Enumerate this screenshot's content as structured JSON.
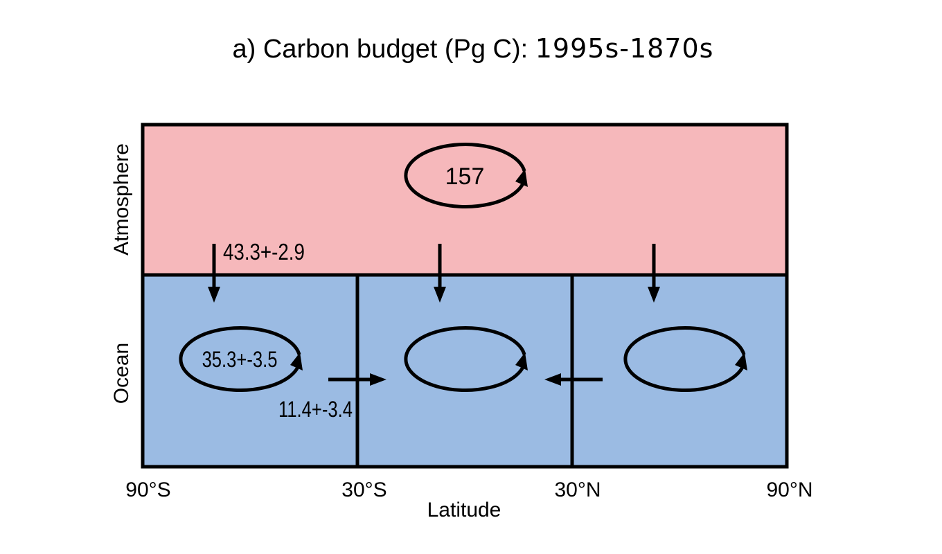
{
  "title": {
    "prefix": "a) Carbon budget (Pg C): ",
    "years": "1995s-1870s"
  },
  "colors": {
    "atmosphere": "#f6b8bb",
    "ocean": "#9bbbe3",
    "line": "#000000"
  },
  "rows": {
    "atmosphere_label": "Atmosphere",
    "ocean_label": "Ocean"
  },
  "atmosphere": {
    "circulation_value": "157",
    "flux_south_label": "43.3+-2.9"
  },
  "ocean": {
    "south_circulation_value": "35.3+-3.5",
    "south_to_tropics_flux_label": "11.4+-3.4"
  },
  "x_axis": {
    "ticks": [
      "90°S",
      "30°S",
      "30°N",
      "90°N"
    ],
    "label": "Latitude"
  },
  "icons": {
    "circulation": "circular-arrow-icon",
    "flux": "arrow-icon"
  }
}
